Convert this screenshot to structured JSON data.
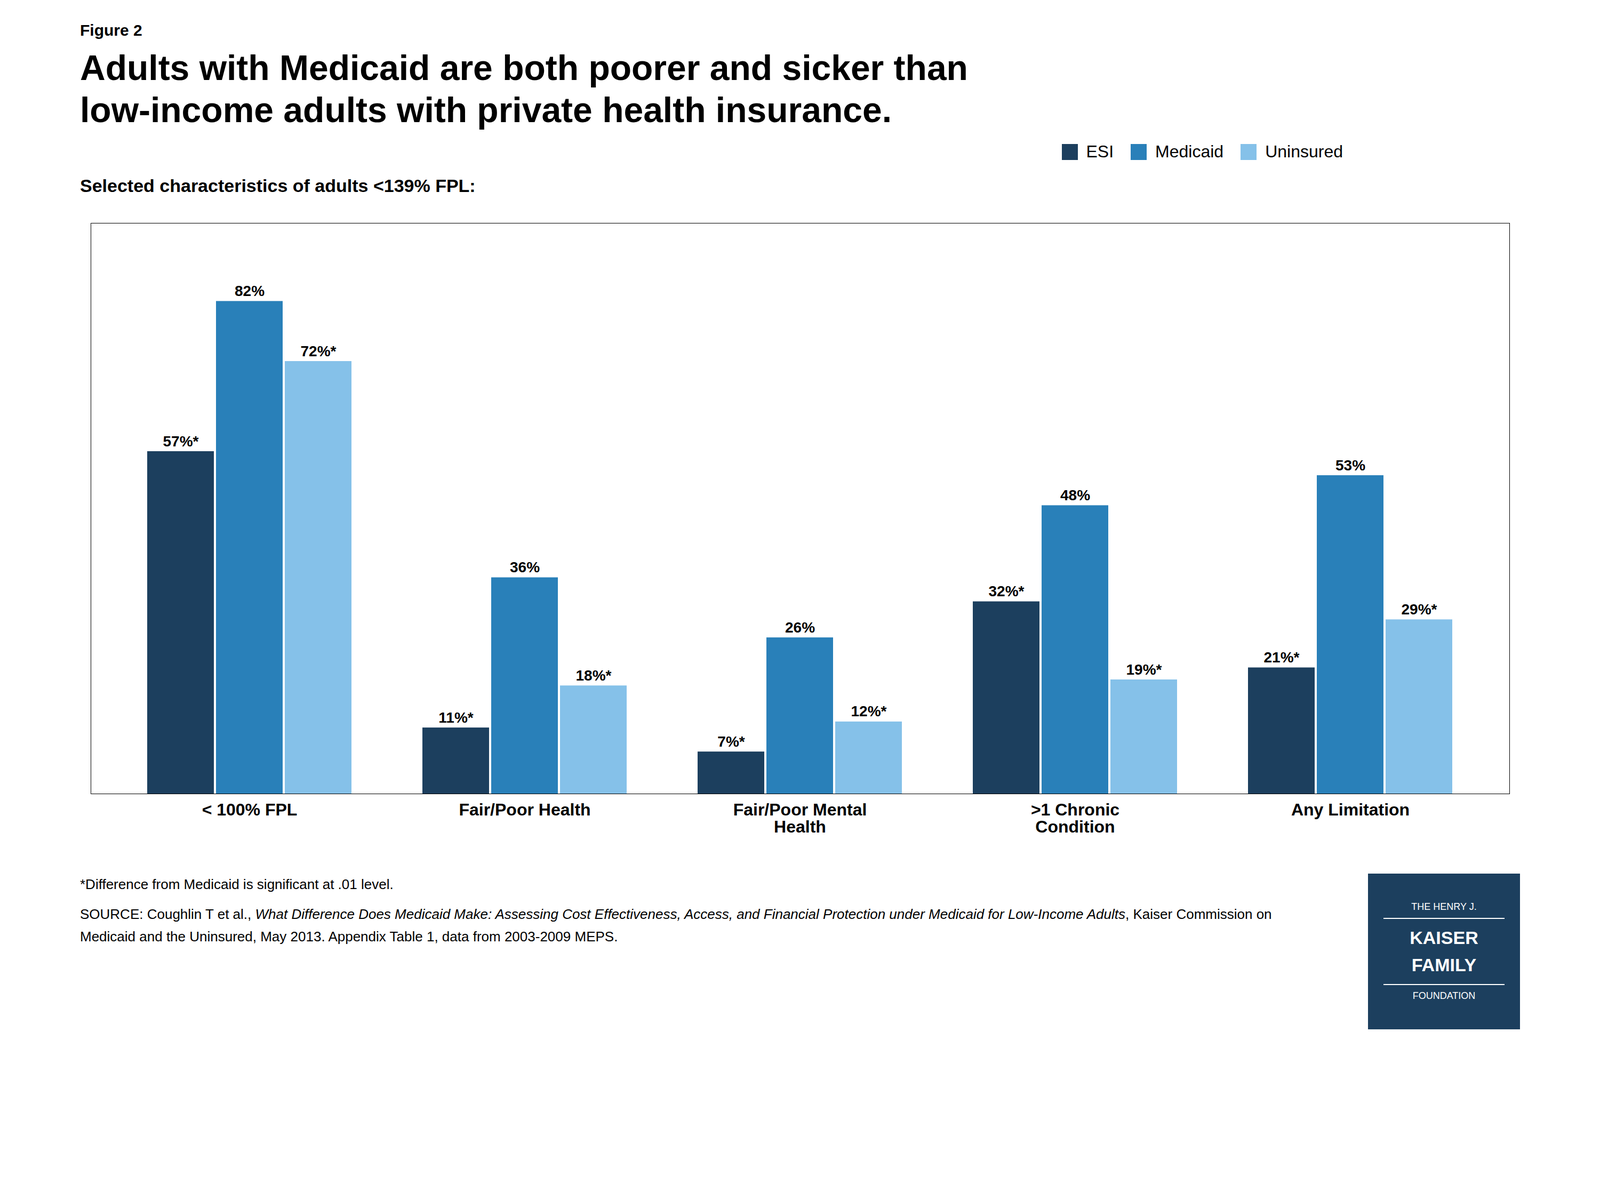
{
  "chart_data": {
    "type": "bar",
    "figure_label": "Figure 2",
    "title": "Adults with Medicaid are both poorer and sicker than\nlow-income adults with private health insurance.",
    "subtitle": "Selected characteristics of adults <139% FPL:",
    "categories": [
      "< 100% FPL",
      "Fair/Poor Health",
      "Fair/Poor Mental\nHealth",
      ">1 Chronic\nCondition",
      "Any Limitation"
    ],
    "series": [
      {
        "name": "ESI",
        "color": "#1c3f5e",
        "values": [
          57,
          11,
          7,
          32,
          21
        ],
        "value_labels": [
          "57%*",
          "11%*",
          "7%*",
          "32%*",
          "21%*"
        ]
      },
      {
        "name": "Medicaid",
        "color": "#2980b9",
        "values": [
          82,
          36,
          26,
          48,
          53
        ],
        "value_labels": [
          "82%",
          "36%",
          "26%",
          "48%",
          "53%"
        ]
      },
      {
        "name": "Uninsured",
        "color": "#85c1e9",
        "values": [
          72,
          18,
          12,
          19,
          29
        ],
        "value_labels": [
          "72%*",
          "18%*",
          "12%*",
          "19%*",
          "29%*"
        ]
      }
    ],
    "ylim": [
      0,
      95
    ],
    "data_labels": true,
    "tick_labels": "x",
    "grid": false,
    "legend": "top",
    "footnote": "*Difference from Medicaid is significant at .01 level.",
    "source": [
      "SOURCE: Coughlin T et al., ",
      "What Difference Does Medicaid Make: Assessing Cost Effectiveness, Access, and Financial Protection under Medicaid for Low-Income Adults",
      ", Kaiser Commission on Medicaid and the Uninsured, May 2013. Appendix Table 1, data from 2003-2009 MEPS."
    ],
    "logo": [
      "THE HENRY J.",
      "KAISER",
      "FAMILY",
      "FOUNDATION"
    ],
    "logo_color": "#1c3f5e",
    "background_color": "#ffffff"
  }
}
